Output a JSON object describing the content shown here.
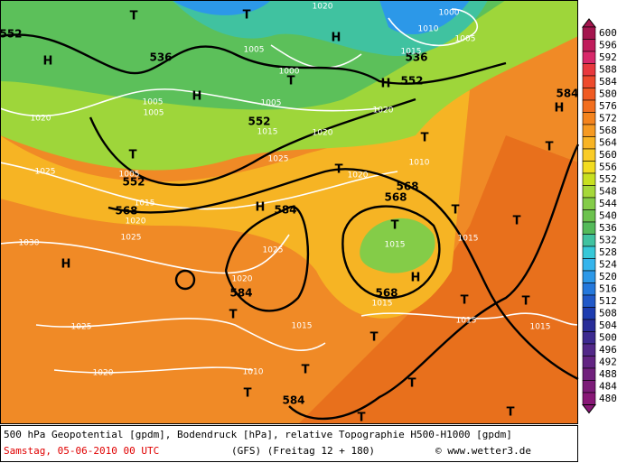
{
  "legend": {
    "labels": [
      600,
      596,
      592,
      588,
      584,
      580,
      576,
      572,
      568,
      564,
      560,
      556,
      552,
      548,
      544,
      540,
      536,
      532,
      528,
      524,
      520,
      516,
      512,
      508,
      504,
      500,
      496,
      492,
      488,
      484,
      480
    ],
    "colors": [
      "#a4154e",
      "#c01c5c",
      "#d8286a",
      "#e8383e",
      "#ee4a2c",
      "#f05a22",
      "#f26e1e",
      "#f4841e",
      "#f69a22",
      "#f8b424",
      "#facc26",
      "#f2dc20",
      "#c8e020",
      "#a6d83a",
      "#84cc48",
      "#6cc24e",
      "#54ba5a",
      "#40c2a0",
      "#36c8d8",
      "#34b4ec",
      "#2c98e8",
      "#2478dc",
      "#2058c8",
      "#1c3cb0",
      "#282c98",
      "#3c2a90",
      "#522888",
      "#622482",
      "#70207c",
      "#7c1c78",
      "#881876"
    ]
  },
  "map_labels": [
    "H",
    "T",
    "T",
    "H",
    "H",
    "T",
    "T",
    "H",
    "T",
    "T",
    "H",
    "T",
    "H",
    "H",
    "T",
    "H",
    "T",
    "T",
    "T",
    "T",
    "T",
    "T",
    "T",
    "T",
    "T",
    "T",
    "T",
    "552",
    "536",
    "552",
    "552",
    "552",
    "536",
    "584",
    "568",
    "584",
    "568",
    "568",
    "584",
    "568",
    "584",
    "1020",
    "1005",
    "1000",
    "1010",
    "1005",
    "1000",
    "1015",
    "1005",
    "1005",
    "1020",
    "1005",
    "1015",
    "1020",
    "1020",
    "1025",
    "1025",
    "1005",
    "1015",
    "1020",
    "1020",
    "1010",
    "1025",
    "1030",
    "1025",
    "1015",
    "1015",
    "1020",
    "1015",
    "1015",
    "1015",
    "1015",
    "1025",
    "1020",
    "1010"
  ],
  "caption": {
    "line1": "500 hPa Geopotential [gpdm], Bodendruck [hPa], relative Topographie H500-H1000 [gpdm]",
    "date": "Samstag, 05-06-2010  00 UTC",
    "model": "(GFS)  (Freitag 12 + 180)",
    "credit": "© www.wetter3.de"
  }
}
